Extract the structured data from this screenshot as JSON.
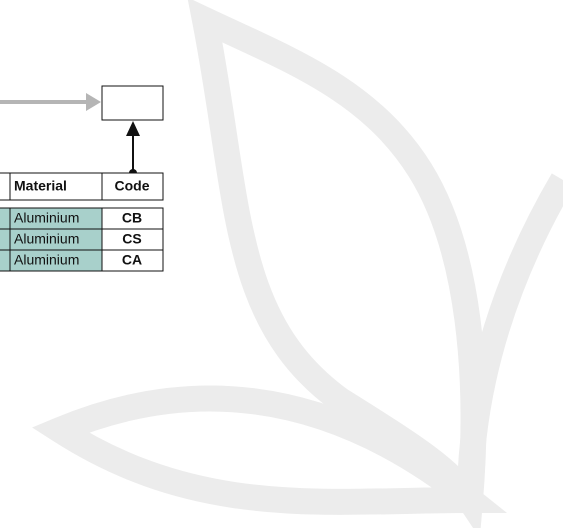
{
  "table": {
    "header": [
      "Material",
      "Code"
    ],
    "rows": [
      [
        "Aluminium",
        "CB"
      ],
      [
        "Aluminium",
        "CS"
      ],
      [
        "Aluminium",
        "CA"
      ]
    ]
  }
}
